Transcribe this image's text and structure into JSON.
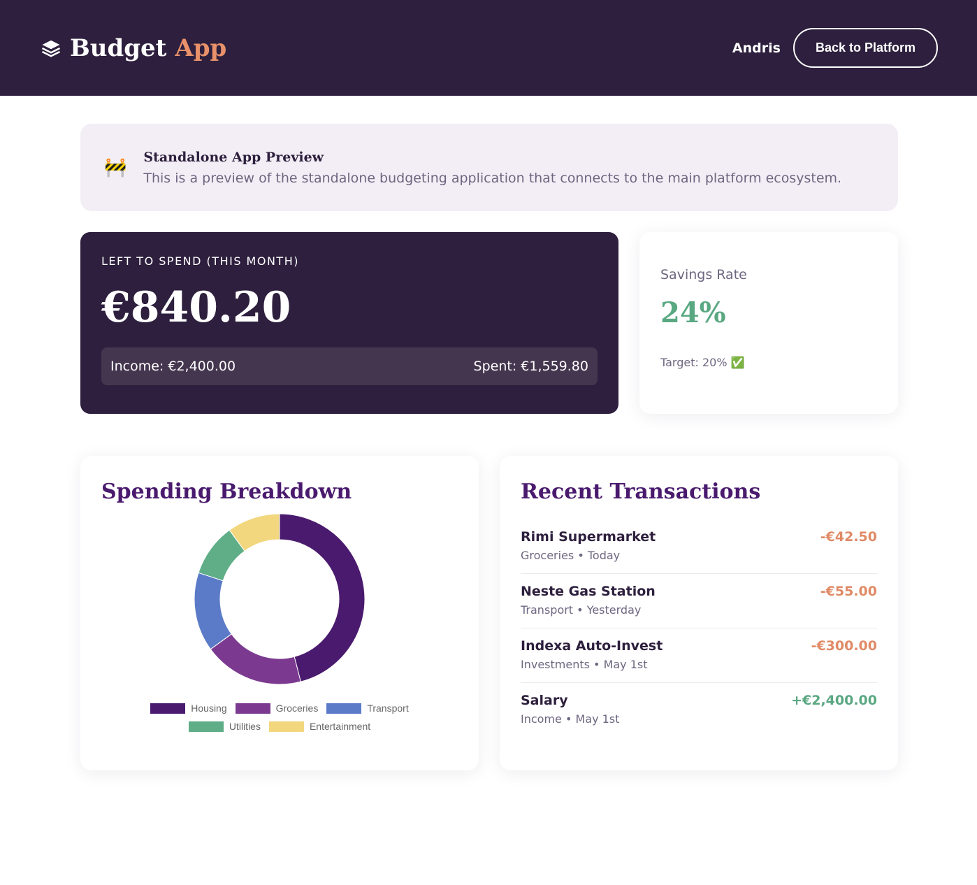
{
  "header": {
    "logo_word1": "Budget",
    "logo_word2": "App",
    "user": "Andris",
    "button": "Back to Platform"
  },
  "notice": {
    "icon": "🚧",
    "title": "Standalone App Preview",
    "text": "This is a preview of the standalone budgeting application that connects to the main platform ecosystem."
  },
  "balance": {
    "label": "LEFT TO SPEND (THIS MONTH)",
    "amount": "€840.20",
    "income": "Income: €2,400.00",
    "spent": "Spent: €1,559.80"
  },
  "savings": {
    "label": "Savings Rate",
    "value": "24%",
    "target": "Target: 20%",
    "target_icon": "✅"
  },
  "chart_data": {
    "type": "doughnut",
    "title": "Spending Breakdown",
    "categories": [
      "Housing",
      "Groceries",
      "Transport",
      "Utilities",
      "Entertainment"
    ],
    "values": [
      46,
      19,
      15,
      10,
      10
    ],
    "colors": [
      "#4a1a6e",
      "#7b3a90",
      "#5b7bc8",
      "#5fae88",
      "#f2d77e"
    ]
  },
  "transactions": {
    "title": "Recent Transactions",
    "items": [
      {
        "name": "Rimi Supermarket",
        "meta": "Groceries • Today",
        "amount": "-€42.50"
      },
      {
        "name": "Neste Gas Station",
        "meta": "Transport • Yesterday",
        "amount": "-€55.00"
      },
      {
        "name": "Indexa Auto-Invest",
        "meta": "Investments • May 1st",
        "amount": "-€300.00"
      },
      {
        "name": "Salary",
        "meta": "Income • May 1st",
        "amount": "+€2,400.00"
      }
    ]
  }
}
